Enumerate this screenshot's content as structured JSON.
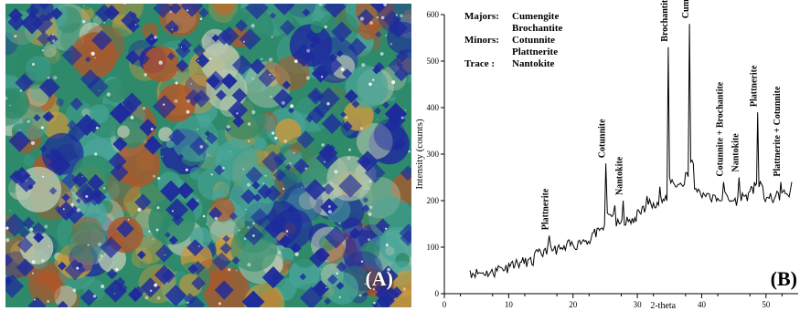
{
  "photo": {
    "label": "(A)",
    "colors": {
      "azurite_blue": "#1e2a9c",
      "green": "#2e8a6a",
      "teal": "#49a59a",
      "ochre": "#c89a40",
      "rust": "#b0562a",
      "pale": "#b8c8b0"
    }
  },
  "chart_label": "(B)",
  "legend": [
    {
      "key": "Majors:",
      "values": [
        "Cumengite",
        "Brochantite"
      ]
    },
    {
      "key": "Minors:",
      "values": [
        "Cotunnite",
        "Plattnerite"
      ]
    },
    {
      "key": "Trace :",
      "values": [
        "Nantokite"
      ]
    }
  ],
  "chart_data": {
    "type": "line",
    "title": "",
    "xlabel": "2-theta",
    "ylabel": "Intensity (counts)",
    "xlim": [
      0,
      55
    ],
    "ylim": [
      0,
      600
    ],
    "xticks": [
      0,
      10,
      20,
      30,
      40,
      50
    ],
    "yticks": [
      0,
      100,
      200,
      300,
      400,
      500,
      600
    ],
    "grid": false,
    "series": [
      {
        "x": [
          4,
          6,
          8,
          10,
          12,
          14,
          15.5,
          16.3,
          17,
          19,
          21,
          23,
          24.3,
          25.1,
          25.8,
          26.5,
          27.2,
          27.8,
          28.6,
          30,
          31.5,
          32.5,
          33.5,
          34.2,
          34.8,
          35.4,
          36.5,
          37.5,
          38.1,
          38.7,
          39.5,
          41,
          42.5,
          43.4,
          44,
          45,
          45.8,
          46.5,
          47.5,
          48.2,
          48.7,
          49.5,
          50.5,
          51.5,
          52.3,
          53,
          54
        ],
        "y": [
          50,
          45,
          55,
          65,
          68,
          85,
          95,
          125,
          95,
          105,
          115,
          130,
          140,
          280,
          170,
          190,
          150,
          200,
          155,
          180,
          210,
          195,
          230,
          200,
          530,
          245,
          235,
          260,
          580,
          280,
          225,
          215,
          205,
          240,
          210,
          200,
          250,
          210,
          220,
          240,
          390,
          230,
          205,
          210,
          240,
          215,
          240
        ]
      }
    ],
    "annotations": [
      {
        "text": "Plattnerite",
        "x": 16.3,
        "y": 125
      },
      {
        "text": "Cotunnite",
        "x": 25.1,
        "y": 280
      },
      {
        "text": "Nantokite",
        "x": 27.8,
        "y": 200
      },
      {
        "text": "Brochantite",
        "x": 34.8,
        "y": 530
      },
      {
        "text": "Cumengite",
        "x": 38.1,
        "y": 580
      },
      {
        "text": "Cotunnite + Brochantite",
        "x": 43.4,
        "y": 240
      },
      {
        "text": "Nantokite",
        "x": 45.8,
        "y": 250
      },
      {
        "text": "Plattnerite",
        "x": 48.7,
        "y": 390
      },
      {
        "text": "Plattnerite + Cotunnite",
        "x": 52.3,
        "y": 240
      }
    ]
  }
}
